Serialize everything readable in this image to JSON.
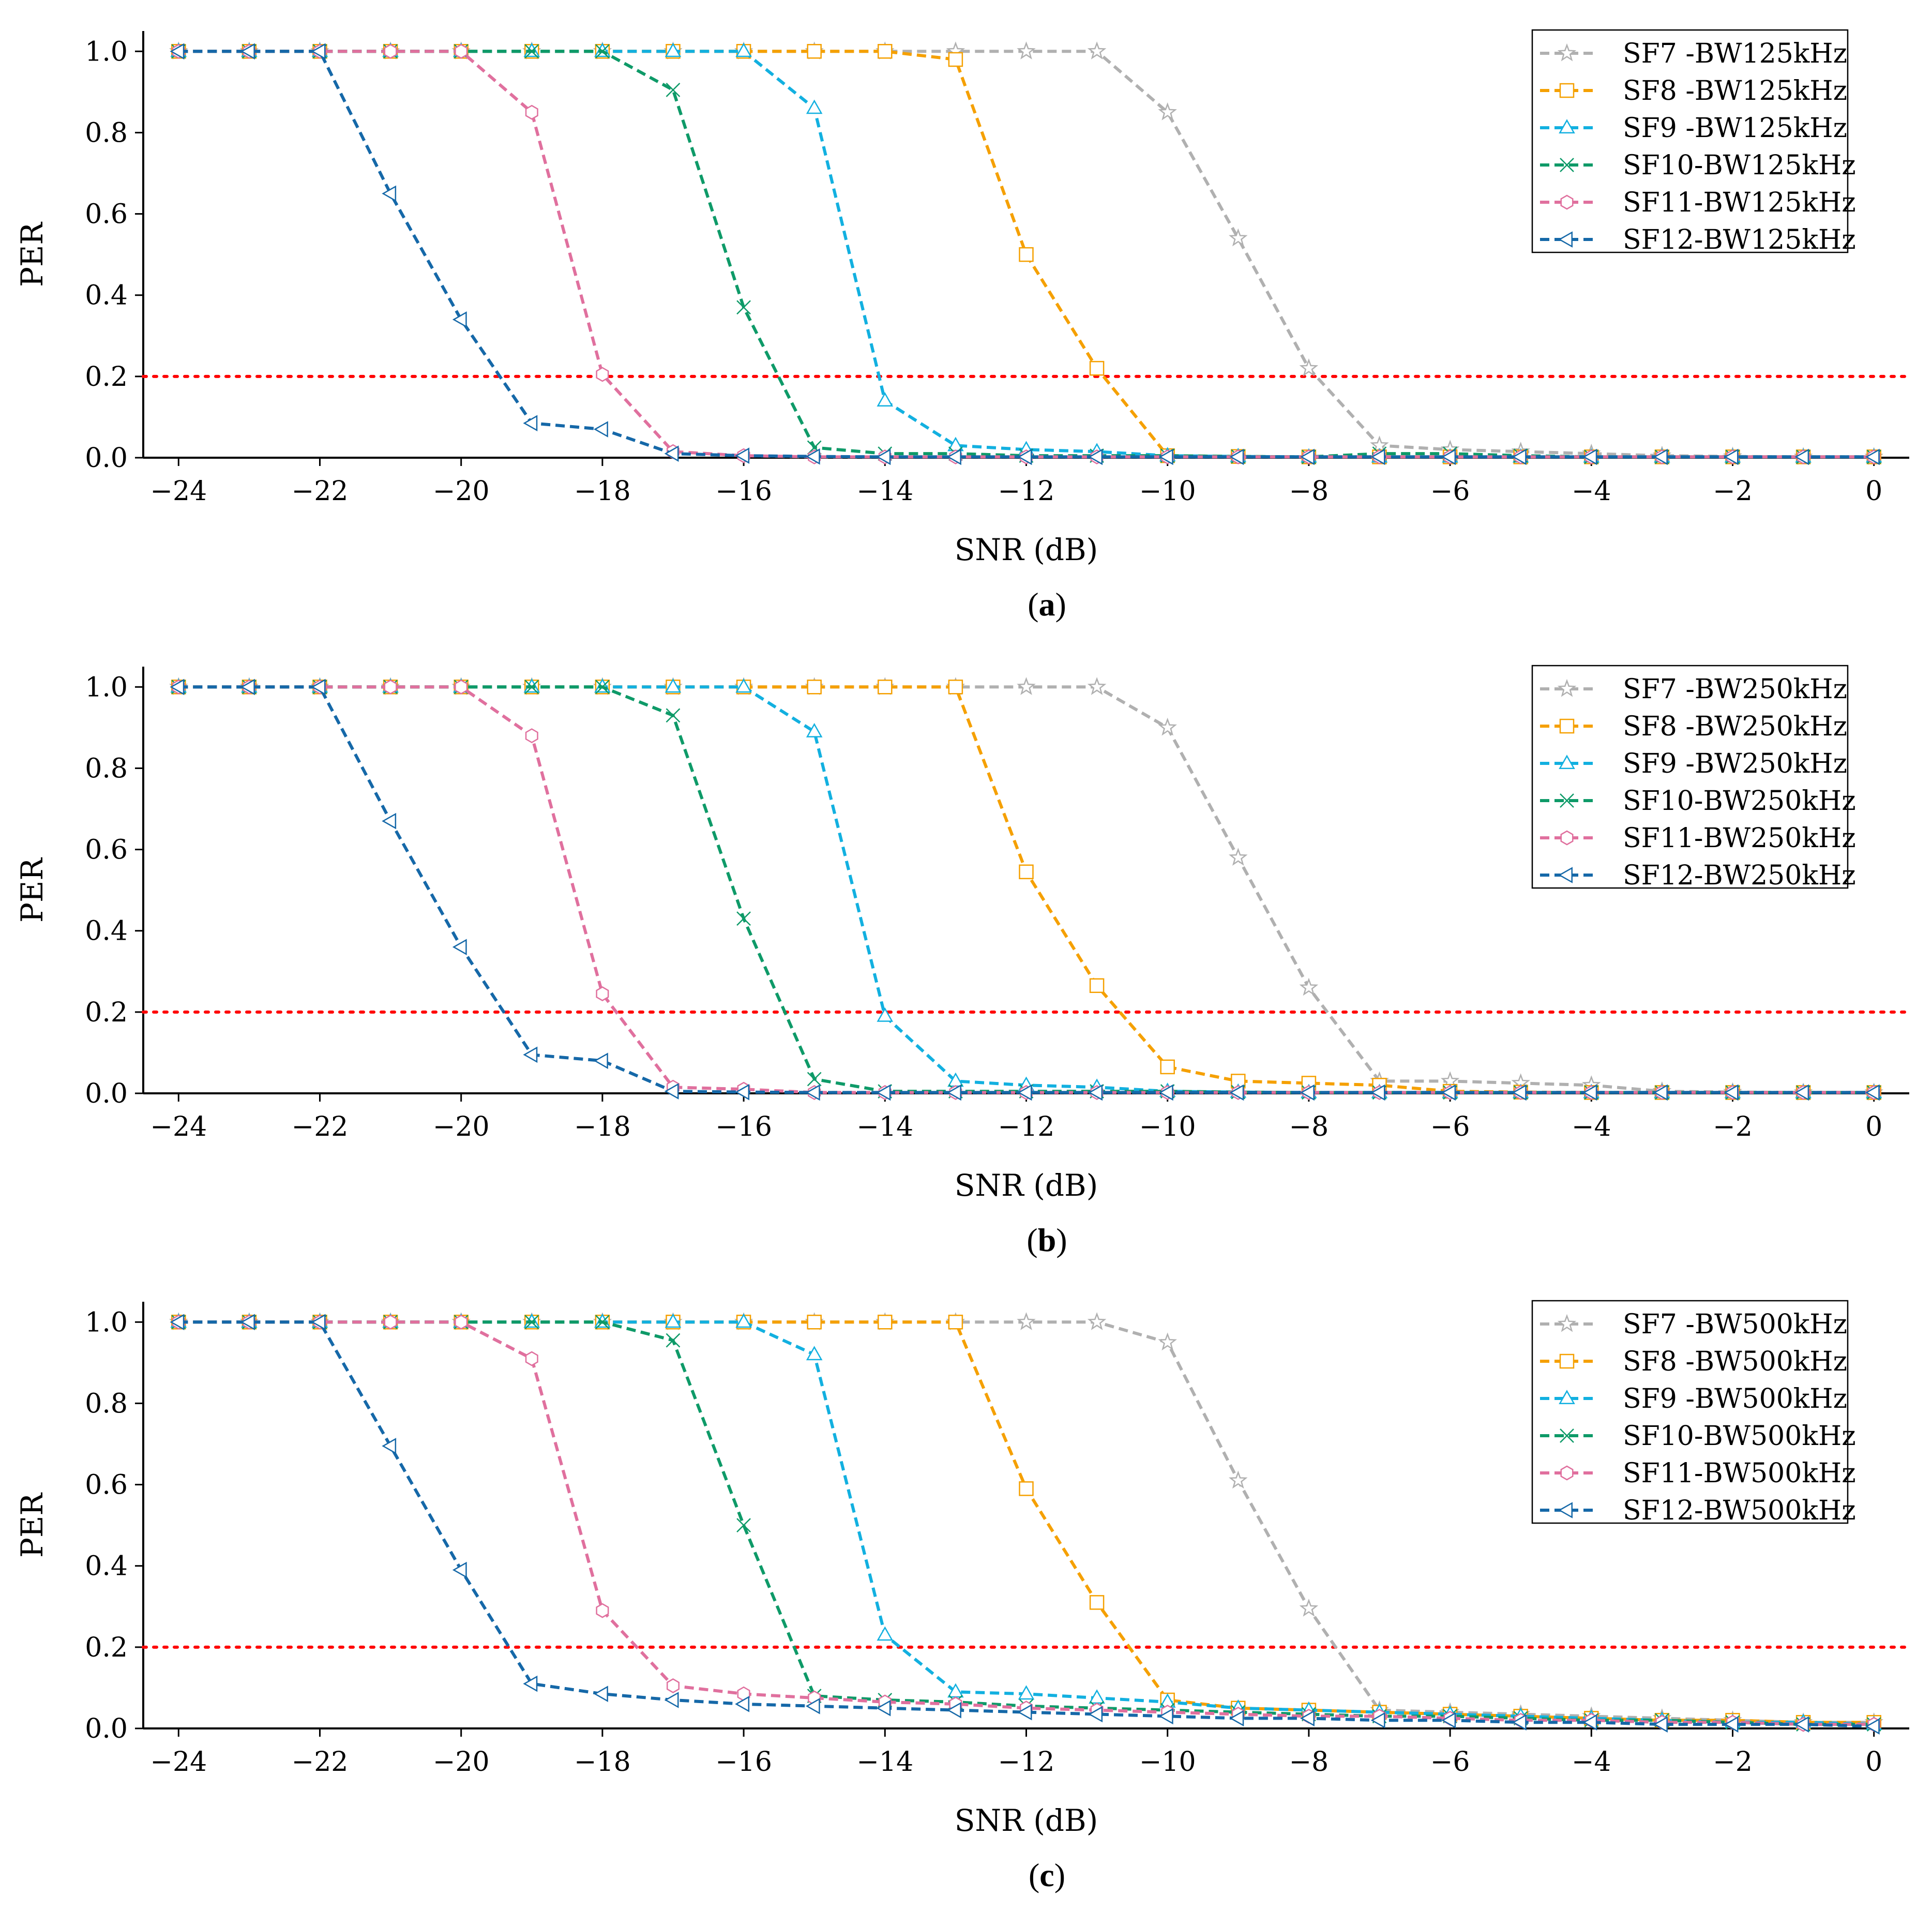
{
  "colors": {
    "SF7": "#b0b0b0",
    "SF8": "#f5a000",
    "SF9": "#12b0e0",
    "SF10": "#0e9a68",
    "SF11": "#e0709e",
    "SF12": "#1568a8",
    "threshold": "#ff0000",
    "axis": "#000000"
  },
  "chart_data": [
    {
      "type": "line",
      "caption": "a",
      "xlabel": "SNR (dB)",
      "ylabel": "PER",
      "xlim": [
        -24.5,
        0.5
      ],
      "ylim": [
        0,
        1.05
      ],
      "xticks": [
        -24,
        -22,
        -20,
        -18,
        -16,
        -14,
        -12,
        -10,
        -8,
        -6,
        -4,
        -2,
        0
      ],
      "xtick_labels": [
        "−24",
        "−22",
        "−20",
        "−18",
        "−16",
        "−14",
        "−12",
        "−10",
        "−8",
        "−6",
        "−4",
        "−2",
        "0"
      ],
      "yticks": [
        0,
        0.2,
        0.4,
        0.6,
        0.8,
        1.0
      ],
      "ytick_labels": [
        "0.0",
        "0.2",
        "0.4",
        "0.6",
        "0.8",
        "1.0"
      ],
      "threshold": 0.2,
      "legend_position": "top-right",
      "x": [
        -24,
        -23,
        -22,
        -21,
        -20,
        -19,
        -18,
        -17,
        -16,
        -15,
        -14,
        -13,
        -12,
        -11,
        -10,
        -9,
        -8,
        -7,
        -6,
        -5,
        -4,
        -3,
        -2,
        -1,
        0
      ],
      "series": [
        {
          "key": "SF7",
          "name": "SF7 -BW125kHz",
          "marker": "star",
          "values": [
            1,
            1,
            1,
            1,
            1,
            1,
            1,
            1,
            1,
            1,
            1,
            1,
            1,
            1,
            0.85,
            0.54,
            0.22,
            0.03,
            0.02,
            0.015,
            0.01,
            0.005,
            0.003,
            0.002,
            0.002
          ]
        },
        {
          "key": "SF8",
          "name": "SF8 -BW125kHz",
          "marker": "square",
          "values": [
            1,
            1,
            1,
            1,
            1,
            1,
            1,
            1,
            1,
            1,
            1,
            0.98,
            0.5,
            0.22,
            0.005,
            0.003,
            0.002,
            0.002,
            0.002,
            0.002,
            0.002,
            0.002,
            0.002,
            0.002,
            0.002
          ]
        },
        {
          "key": "SF9",
          "name": "SF9 -BW125kHz",
          "marker": "triangle",
          "values": [
            1,
            1,
            1,
            1,
            1,
            1,
            1,
            1,
            1,
            0.86,
            0.14,
            0.03,
            0.02,
            0.015,
            0.005,
            0.003,
            0.002,
            0.002,
            0.002,
            0.002,
            0.002,
            0.002,
            0.002,
            0.002,
            0.002
          ]
        },
        {
          "key": "SF10",
          "name": "SF10-BW125kHz",
          "marker": "x",
          "values": [
            1,
            1,
            1,
            1,
            1,
            1,
            1,
            0.905,
            0.37,
            0.025,
            0.01,
            0.01,
            0.005,
            0.005,
            0.005,
            0.003,
            0.002,
            0.01,
            0.01,
            0.005,
            0.002,
            0.002,
            0.002,
            0.002,
            0.002
          ]
        },
        {
          "key": "SF11",
          "name": "SF11-BW125kHz",
          "marker": "hexagon",
          "values": [
            1,
            1,
            1,
            1,
            1,
            0.85,
            0.205,
            0.015,
            0.005,
            0.002,
            0.002,
            0.002,
            0.002,
            0.002,
            0.002,
            0.002,
            0.002,
            0.002,
            0.002,
            0.002,
            0.002,
            0.002,
            0.002,
            0.002,
            0.002
          ]
        },
        {
          "key": "SF12",
          "name": "SF12-BW125kHz",
          "marker": "tri_left",
          "values": [
            1,
            1,
            1,
            0.65,
            0.34,
            0.085,
            0.07,
            0.01,
            0.005,
            0.003,
            0.002,
            0.002,
            0.002,
            0.002,
            0.002,
            0.002,
            0.002,
            0.002,
            0.002,
            0.002,
            0.002,
            0.002,
            0.002,
            0.002,
            0.002
          ]
        }
      ]
    },
    {
      "type": "line",
      "caption": "b",
      "xlabel": "SNR (dB)",
      "ylabel": "PER",
      "xlim": [
        -24.5,
        0.5
      ],
      "ylim": [
        0,
        1.05
      ],
      "xticks": [
        -24,
        -22,
        -20,
        -18,
        -16,
        -14,
        -12,
        -10,
        -8,
        -6,
        -4,
        -2,
        0
      ],
      "xtick_labels": [
        "−24",
        "−22",
        "−20",
        "−18",
        "−16",
        "−14",
        "−12",
        "−10",
        "−8",
        "−6",
        "−4",
        "−2",
        "0"
      ],
      "yticks": [
        0,
        0.2,
        0.4,
        0.6,
        0.8,
        1.0
      ],
      "ytick_labels": [
        "0.0",
        "0.2",
        "0.4",
        "0.6",
        "0.8",
        "1.0"
      ],
      "threshold": 0.2,
      "legend_position": "top-right",
      "x": [
        -24,
        -23,
        -22,
        -21,
        -20,
        -19,
        -18,
        -17,
        -16,
        -15,
        -14,
        -13,
        -12,
        -11,
        -10,
        -9,
        -8,
        -7,
        -6,
        -5,
        -4,
        -3,
        -2,
        -1,
        0
      ],
      "series": [
        {
          "key": "SF7",
          "name": "SF7 -BW250kHz",
          "marker": "star",
          "values": [
            1,
            1,
            1,
            1,
            1,
            1,
            1,
            1,
            1,
            1,
            1,
            1,
            1,
            1,
            0.9,
            0.58,
            0.26,
            0.03,
            0.03,
            0.025,
            0.02,
            0.005,
            0.003,
            0.002,
            0.002
          ]
        },
        {
          "key": "SF8",
          "name": "SF8 -BW250kHz",
          "marker": "square",
          "values": [
            1,
            1,
            1,
            1,
            1,
            1,
            1,
            1,
            1,
            1,
            1,
            1,
            0.545,
            0.265,
            0.065,
            0.03,
            0.025,
            0.02,
            0.005,
            0.003,
            0.002,
            0.002,
            0.002,
            0.002,
            0.002
          ]
        },
        {
          "key": "SF9",
          "name": "SF9 -BW250kHz",
          "marker": "triangle",
          "values": [
            1,
            1,
            1,
            1,
            1,
            1,
            1,
            1,
            1,
            0.89,
            0.19,
            0.03,
            0.02,
            0.015,
            0.005,
            0.003,
            0.002,
            0.002,
            0.002,
            0.002,
            0.002,
            0.002,
            0.002,
            0.002,
            0.002
          ]
        },
        {
          "key": "SF10",
          "name": "SF10-BW250kHz",
          "marker": "x",
          "values": [
            1,
            1,
            1,
            1,
            1,
            1,
            1,
            0.93,
            0.43,
            0.035,
            0.005,
            0.005,
            0.005,
            0.005,
            0.005,
            0.003,
            0.002,
            0.002,
            0.002,
            0.002,
            0.002,
            0.002,
            0.002,
            0.002,
            0.002
          ]
        },
        {
          "key": "SF11",
          "name": "SF11-BW250kHz",
          "marker": "hexagon",
          "values": [
            1,
            1,
            1,
            1,
            1,
            0.88,
            0.245,
            0.015,
            0.01,
            0.002,
            0.002,
            0.002,
            0.002,
            0.002,
            0.002,
            0.002,
            0.002,
            0.002,
            0.002,
            0.002,
            0.002,
            0.002,
            0.002,
            0.002,
            0.002
          ]
        },
        {
          "key": "SF12",
          "name": "SF12-BW250kHz",
          "marker": "tri_left",
          "values": [
            1,
            1,
            1,
            0.67,
            0.36,
            0.095,
            0.08,
            0.005,
            0.003,
            0.002,
            0.002,
            0.002,
            0.002,
            0.002,
            0.002,
            0.002,
            0.002,
            0.002,
            0.002,
            0.002,
            0.002,
            0.002,
            0.002,
            0.002,
            0.002
          ]
        }
      ]
    },
    {
      "type": "line",
      "caption": "c",
      "xlabel": "SNR (dB)",
      "ylabel": "PER",
      "xlim": [
        -24.5,
        0.5
      ],
      "ylim": [
        0,
        1.05
      ],
      "xticks": [
        -24,
        -22,
        -20,
        -18,
        -16,
        -14,
        -12,
        -10,
        -8,
        -6,
        -4,
        -2,
        0
      ],
      "xtick_labels": [
        "−24",
        "−22",
        "−20",
        "−18",
        "−16",
        "−14",
        "−12",
        "−10",
        "−8",
        "−6",
        "−4",
        "−2",
        "0"
      ],
      "yticks": [
        0,
        0.2,
        0.4,
        0.6,
        0.8,
        1.0
      ],
      "ytick_labels": [
        "0.0",
        "0.2",
        "0.4",
        "0.6",
        "0.8",
        "1.0"
      ],
      "threshold": 0.2,
      "legend_position": "top-right",
      "x": [
        -24,
        -23,
        -22,
        -21,
        -20,
        -19,
        -18,
        -17,
        -16,
        -15,
        -14,
        -13,
        -12,
        -11,
        -10,
        -9,
        -8,
        -7,
        -6,
        -5,
        -4,
        -3,
        -2,
        -1,
        0
      ],
      "series": [
        {
          "key": "SF7",
          "name": "SF7 -BW500kHz",
          "marker": "star",
          "values": [
            1,
            1,
            1,
            1,
            1,
            1,
            1,
            1,
            1,
            1,
            1,
            1,
            1,
            1,
            0.95,
            0.61,
            0.295,
            0.045,
            0.04,
            0.035,
            0.03,
            0.025,
            0.02,
            0.015,
            0.015
          ]
        },
        {
          "key": "SF8",
          "name": "SF8 -BW500kHz",
          "marker": "square",
          "values": [
            1,
            1,
            1,
            1,
            1,
            1,
            1,
            1,
            1,
            1,
            1,
            1,
            0.59,
            0.31,
            0.07,
            0.05,
            0.045,
            0.04,
            0.035,
            0.03,
            0.025,
            0.02,
            0.02,
            0.015,
            0.015
          ]
        },
        {
          "key": "SF9",
          "name": "SF9 -BW500kHz",
          "marker": "triangle",
          "values": [
            1,
            1,
            1,
            1,
            1,
            1,
            1,
            1,
            1,
            0.92,
            0.23,
            0.09,
            0.085,
            0.075,
            0.065,
            0.05,
            0.045,
            0.04,
            0.035,
            0.03,
            0.025,
            0.02,
            0.015,
            0.015,
            0.01
          ]
        },
        {
          "key": "SF10",
          "name": "SF10-BW500kHz",
          "marker": "x",
          "values": [
            1,
            1,
            1,
            1,
            1,
            1,
            1,
            0.955,
            0.5,
            0.08,
            0.07,
            0.065,
            0.055,
            0.05,
            0.045,
            0.04,
            0.035,
            0.03,
            0.03,
            0.025,
            0.02,
            0.02,
            0.015,
            0.01,
            0.01
          ]
        },
        {
          "key": "SF11",
          "name": "SF11-BW500kHz",
          "marker": "hexagon",
          "values": [
            1,
            1,
            1,
            1,
            1,
            0.91,
            0.29,
            0.105,
            0.085,
            0.075,
            0.065,
            0.06,
            0.05,
            0.045,
            0.04,
            0.035,
            0.03,
            0.03,
            0.025,
            0.02,
            0.02,
            0.015,
            0.015,
            0.01,
            0.01
          ]
        },
        {
          "key": "SF12",
          "name": "SF12-BW500kHz",
          "marker": "tri_left",
          "values": [
            1,
            1,
            1,
            0.695,
            0.39,
            0.11,
            0.085,
            0.07,
            0.06,
            0.055,
            0.05,
            0.045,
            0.04,
            0.035,
            0.03,
            0.025,
            0.025,
            0.02,
            0.02,
            0.015,
            0.015,
            0.01,
            0.01,
            0.01,
            0.005
          ]
        }
      ]
    }
  ]
}
